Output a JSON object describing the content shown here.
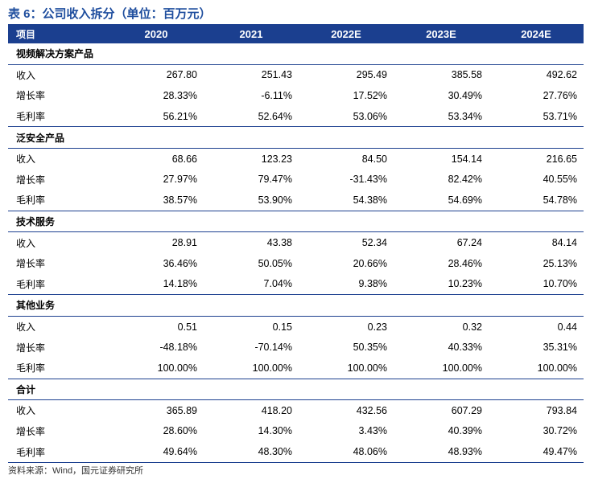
{
  "title": "表 6：公司收入拆分（单位：百万元）",
  "header": [
    "项目",
    "2020",
    "2021",
    "2022E",
    "2023E",
    "2024E"
  ],
  "sections": [
    {
      "name": "视频解决方案产品",
      "rows": [
        {
          "label": "收入",
          "values": [
            "267.80",
            "251.43",
            "295.49",
            "385.58",
            "492.62"
          ]
        },
        {
          "label": "增长率",
          "values": [
            "28.33%",
            "-6.11%",
            "17.52%",
            "30.49%",
            "27.76%"
          ]
        },
        {
          "label": "毛利率",
          "values": [
            "56.21%",
            "52.64%",
            "53.06%",
            "53.34%",
            "53.71%"
          ]
        }
      ]
    },
    {
      "name": "泛安全产品",
      "rows": [
        {
          "label": "收入",
          "values": [
            "68.66",
            "123.23",
            "84.50",
            "154.14",
            "216.65"
          ]
        },
        {
          "label": "增长率",
          "values": [
            "27.97%",
            "79.47%",
            "-31.43%",
            "82.42%",
            "40.55%"
          ]
        },
        {
          "label": "毛利率",
          "values": [
            "38.57%",
            "53.90%",
            "54.38%",
            "54.69%",
            "54.78%"
          ]
        }
      ]
    },
    {
      "name": "技术服务",
      "rows": [
        {
          "label": "收入",
          "values": [
            "28.91",
            "43.38",
            "52.34",
            "67.24",
            "84.14"
          ]
        },
        {
          "label": "增长率",
          "values": [
            "36.46%",
            "50.05%",
            "20.66%",
            "28.46%",
            "25.13%"
          ]
        },
        {
          "label": "毛利率",
          "values": [
            "14.18%",
            "7.04%",
            "9.38%",
            "10.23%",
            "10.70%"
          ]
        }
      ]
    },
    {
      "name": "其他业务",
      "rows": [
        {
          "label": "收入",
          "values": [
            "0.51",
            "0.15",
            "0.23",
            "0.32",
            "0.44"
          ]
        },
        {
          "label": "增长率",
          "values": [
            "-48.18%",
            "-70.14%",
            "50.35%",
            "40.33%",
            "35.31%"
          ]
        },
        {
          "label": "毛利率",
          "values": [
            "100.00%",
            "100.00%",
            "100.00%",
            "100.00%",
            "100.00%"
          ]
        }
      ]
    },
    {
      "name": "合计",
      "rows": [
        {
          "label": "收入",
          "values": [
            "365.89",
            "418.20",
            "432.56",
            "607.29",
            "793.84"
          ]
        },
        {
          "label": "增长率",
          "values": [
            "28.60%",
            "14.30%",
            "3.43%",
            "40.39%",
            "30.72%"
          ]
        },
        {
          "label": "毛利率",
          "values": [
            "49.64%",
            "48.30%",
            "48.06%",
            "48.93%",
            "49.47%"
          ]
        }
      ]
    }
  ],
  "source": "资料来源：Wind，国元证券研究所"
}
